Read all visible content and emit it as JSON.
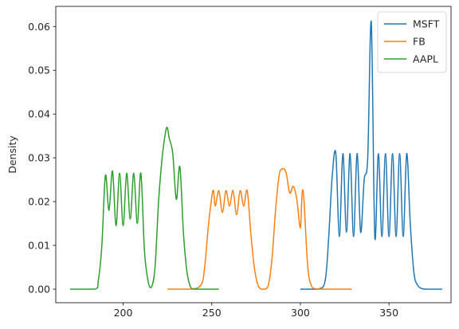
{
  "chart_data": {
    "type": "line",
    "xlabel": "",
    "ylabel": "Density",
    "xlim": [
      162,
      385
    ],
    "ylim": [
      -0.0031,
      0.0646
    ],
    "xticks": [
      200,
      250,
      300,
      350
    ],
    "yticks": [
      0.0,
      0.01,
      0.02,
      0.03,
      0.04,
      0.05,
      0.06
    ],
    "ytick_labels": [
      "0.00",
      "0.01",
      "0.02",
      "0.03",
      "0.04",
      "0.05",
      "0.06"
    ],
    "grid": false,
    "legend_position": "top-right",
    "series": [
      {
        "name": "MSFT",
        "color": "#1f77b4",
        "x": [
          300,
          310,
          314,
          316,
          318,
          320,
          322,
          324,
          326,
          328,
          330,
          332,
          334,
          336,
          338,
          340,
          342,
          344,
          346,
          348,
          350,
          352,
          354,
          356,
          358,
          360,
          362,
          364,
          366,
          370,
          380
        ],
        "y": [
          0.0,
          0.0,
          0.002,
          0.012,
          0.026,
          0.031,
          0.012,
          0.031,
          0.013,
          0.031,
          0.012,
          0.031,
          0.013,
          0.025,
          0.03,
          0.061,
          0.012,
          0.031,
          0.012,
          0.031,
          0.012,
          0.031,
          0.012,
          0.031,
          0.012,
          0.031,
          0.015,
          0.004,
          0.001,
          0.0,
          0.0
        ]
      },
      {
        "name": "FB",
        "color": "#ff7f0e",
        "x": [
          225,
          238,
          244,
          246,
          248,
          250,
          251,
          252,
          254,
          256,
          258,
          260,
          262,
          264,
          266,
          268,
          270,
          272,
          274,
          276,
          278,
          280,
          282,
          284,
          286,
          288,
          290,
          292,
          294,
          296,
          298,
          300,
          301,
          302,
          304,
          306,
          310,
          320,
          329
        ],
        "y": [
          0.0,
          0.0,
          0.001,
          0.005,
          0.014,
          0.021,
          0.0225,
          0.019,
          0.0225,
          0.0175,
          0.0225,
          0.019,
          0.0225,
          0.017,
          0.0225,
          0.019,
          0.0225,
          0.013,
          0.005,
          0.001,
          0.0,
          0.0,
          0.001,
          0.007,
          0.018,
          0.026,
          0.0275,
          0.0265,
          0.022,
          0.0235,
          0.0205,
          0.014,
          0.022,
          0.0205,
          0.006,
          0.001,
          0.0,
          0.0,
          0.0
        ]
      },
      {
        "name": "AAPL",
        "color": "#2ca02c",
        "x": [
          170,
          184,
          186,
          188,
          190,
          192,
          194,
          196,
          198,
          200,
          202,
          204,
          206,
          208,
          210,
          212,
          214,
          216,
          218,
          220,
          222,
          224,
          225,
          226,
          228,
          230,
          232,
          234,
          236,
          238,
          240,
          245,
          254
        ],
        "y": [
          0.0,
          0.0,
          0.002,
          0.01,
          0.026,
          0.018,
          0.027,
          0.0145,
          0.0265,
          0.0145,
          0.0265,
          0.016,
          0.0265,
          0.015,
          0.0265,
          0.009,
          0.002,
          0.0005,
          0.005,
          0.02,
          0.03,
          0.036,
          0.0368,
          0.0345,
          0.031,
          0.0205,
          0.028,
          0.013,
          0.004,
          0.0005,
          0.0,
          0.0,
          0.0
        ]
      }
    ]
  }
}
